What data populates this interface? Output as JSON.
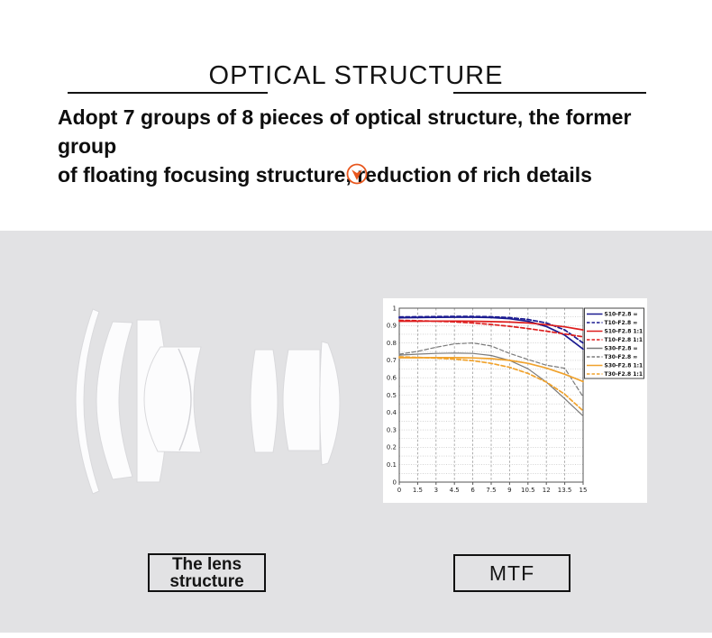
{
  "header": {
    "title": "OPTICAL STRUCTURE",
    "subtitle_line1": "Adopt 7 groups of 8 pieces of optical structure, the former group",
    "subtitle_line2": "of floating focusing structure, reduction of rich details"
  },
  "icons": {
    "down_arrow": "chevron-down-circle",
    "accent_color": "#e8571e"
  },
  "labels": {
    "lens_box_line1": "The lens",
    "lens_box_line2": "structure",
    "mtf_box": "MTF"
  },
  "colors": {
    "panel_gray": "#e2e2e4",
    "text": "#111111",
    "navy": "#1a1a90",
    "red": "#dd1e1e",
    "gray": "#7a7a7a",
    "orange": "#f0a22c"
  },
  "chart_data": {
    "type": "line",
    "title": "",
    "xlabel": "",
    "ylabel": "",
    "xlim": [
      0,
      15
    ],
    "ylim": [
      0,
      1
    ],
    "grid": true,
    "legend_position": "top-right",
    "x": [
      0,
      1.5,
      3,
      4.5,
      6,
      7.5,
      9,
      10.5,
      12,
      13.5,
      15
    ],
    "xticks": [
      "0",
      "1.5",
      "3",
      "4.5",
      "6",
      "7.5",
      "9",
      "10.5",
      "12",
      "13.5",
      "15"
    ],
    "yticks": [
      "1",
      "0.9",
      "0.8",
      "0.7",
      "0.6",
      "0.5",
      "0.4",
      "0.3",
      "0.2",
      "0.1",
      "0"
    ],
    "series": [
      {
        "name": "S10-F2.8 ∞",
        "color": "#1a1a90",
        "dash": false,
        "width": 1.7,
        "values": [
          0.945,
          0.946,
          0.947,
          0.948,
          0.948,
          0.946,
          0.94,
          0.925,
          0.895,
          0.845,
          0.765
        ]
      },
      {
        "name": "T10-F2.8 ∞",
        "color": "#1a1a90",
        "dash": true,
        "width": 1.7,
        "values": [
          0.95,
          0.951,
          0.952,
          0.953,
          0.953,
          0.951,
          0.946,
          0.935,
          0.915,
          0.875,
          0.8
        ]
      },
      {
        "name": "S10-F2.8 1:1",
        "color": "#dd1e1e",
        "dash": false,
        "width": 1.7,
        "values": [
          0.925,
          0.925,
          0.926,
          0.926,
          0.925,
          0.923,
          0.92,
          0.915,
          0.905,
          0.893,
          0.875
        ]
      },
      {
        "name": "T10-F2.8 1:1",
        "color": "#dd1e1e",
        "dash": true,
        "width": 1.7,
        "values": [
          0.93,
          0.928,
          0.925,
          0.921,
          0.915,
          0.906,
          0.896,
          0.883,
          0.868,
          0.852,
          0.835
        ]
      },
      {
        "name": "S30-F2.8 ∞",
        "color": "#7a7a7a",
        "dash": false,
        "width": 1.2,
        "values": [
          0.73,
          0.736,
          0.74,
          0.742,
          0.74,
          0.728,
          0.7,
          0.652,
          0.575,
          0.48,
          0.38
        ]
      },
      {
        "name": "T30-F2.8 ∞",
        "color": "#7a7a7a",
        "dash": true,
        "width": 1.2,
        "values": [
          0.735,
          0.752,
          0.775,
          0.795,
          0.8,
          0.783,
          0.74,
          0.705,
          0.672,
          0.655,
          0.49
        ]
      },
      {
        "name": "S30-F2.8 1:1",
        "color": "#f0a22c",
        "dash": false,
        "width": 1.7,
        "values": [
          0.715,
          0.715,
          0.716,
          0.716,
          0.714,
          0.71,
          0.7,
          0.683,
          0.656,
          0.62,
          0.578
        ]
      },
      {
        "name": "T30-F2.8 1:1",
        "color": "#f0a22c",
        "dash": true,
        "width": 1.7,
        "values": [
          0.72,
          0.717,
          0.713,
          0.707,
          0.698,
          0.683,
          0.66,
          0.625,
          0.575,
          0.505,
          0.41
        ]
      }
    ]
  }
}
